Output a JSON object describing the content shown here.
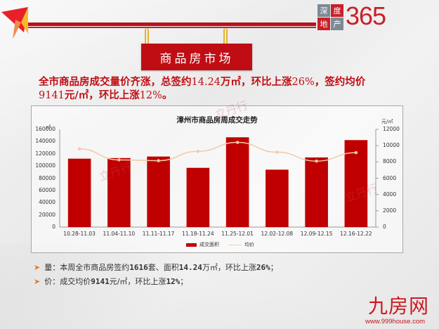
{
  "header": {
    "section_sign": "商品房市场",
    "brand_logo": {
      "box_chars": [
        "深",
        "度",
        "地",
        "产"
      ],
      "number": "365"
    }
  },
  "headline": {
    "line1_parts": [
      "全市商品房成交量价齐涨，总签约",
      "14.24",
      "万㎡，环比上涨",
      "26%",
      "，签约均价"
    ],
    "line2_parts": [
      "9141",
      "元/㎡，环比上涨",
      "12%",
      "。"
    ]
  },
  "chart_data": {
    "type": "bar+line",
    "title": "漳州市商品房周成交走势",
    "categories": [
      "10.28-11.03",
      "11.04-11.10",
      "11.11-11.17",
      "11.18-11.24",
      "11.25-12.01",
      "12.02-12.08",
      "12.09-12.15",
      "12.16-12.22"
    ],
    "series": [
      {
        "name": "成交面积",
        "type": "bar",
        "axis": "left",
        "color": "#c00000",
        "values": [
          112000,
          113000,
          115500,
          97000,
          147000,
          94000,
          114000,
          142400
        ]
      },
      {
        "name": "均价",
        "type": "line",
        "axis": "right",
        "color": "#f3c9a8",
        "values": [
          9600,
          8250,
          8150,
          9300,
          10400,
          9200,
          8100,
          9141
        ]
      }
    ],
    "ylabel_left": "㎡",
    "ylabel_right": "元/㎡",
    "ylim_left": [
      0,
      160000
    ],
    "ylim_right": [
      0,
      12000
    ],
    "yticks_left": [
      "160000",
      "140000",
      "120000",
      "100000",
      "80000",
      "60000",
      "40000",
      "20000",
      "0"
    ],
    "yticks_right": [
      "12000",
      "10000",
      "8000",
      "6000",
      "4000",
      "2000",
      "0"
    ],
    "legend": [
      "成交面积",
      "均价"
    ],
    "legend_position": "bottom",
    "grid": false
  },
  "bullets": [
    {
      "label": "量：本周全市商品房签约",
      "v1": "1616",
      "t2": "套、面积",
      "v2": "14.24",
      "t3": "万㎡，环比上涨",
      "v3": "26%",
      "t4": "；"
    },
    {
      "label": "价：成交均价",
      "v1": "9141",
      "t2": "元/㎡，环比上涨",
      "v2": "12%",
      "t3": "；"
    }
  ],
  "footer_logo": {
    "name": "九房网",
    "url": "www.999house.com"
  },
  "watermark": "立丹行"
}
